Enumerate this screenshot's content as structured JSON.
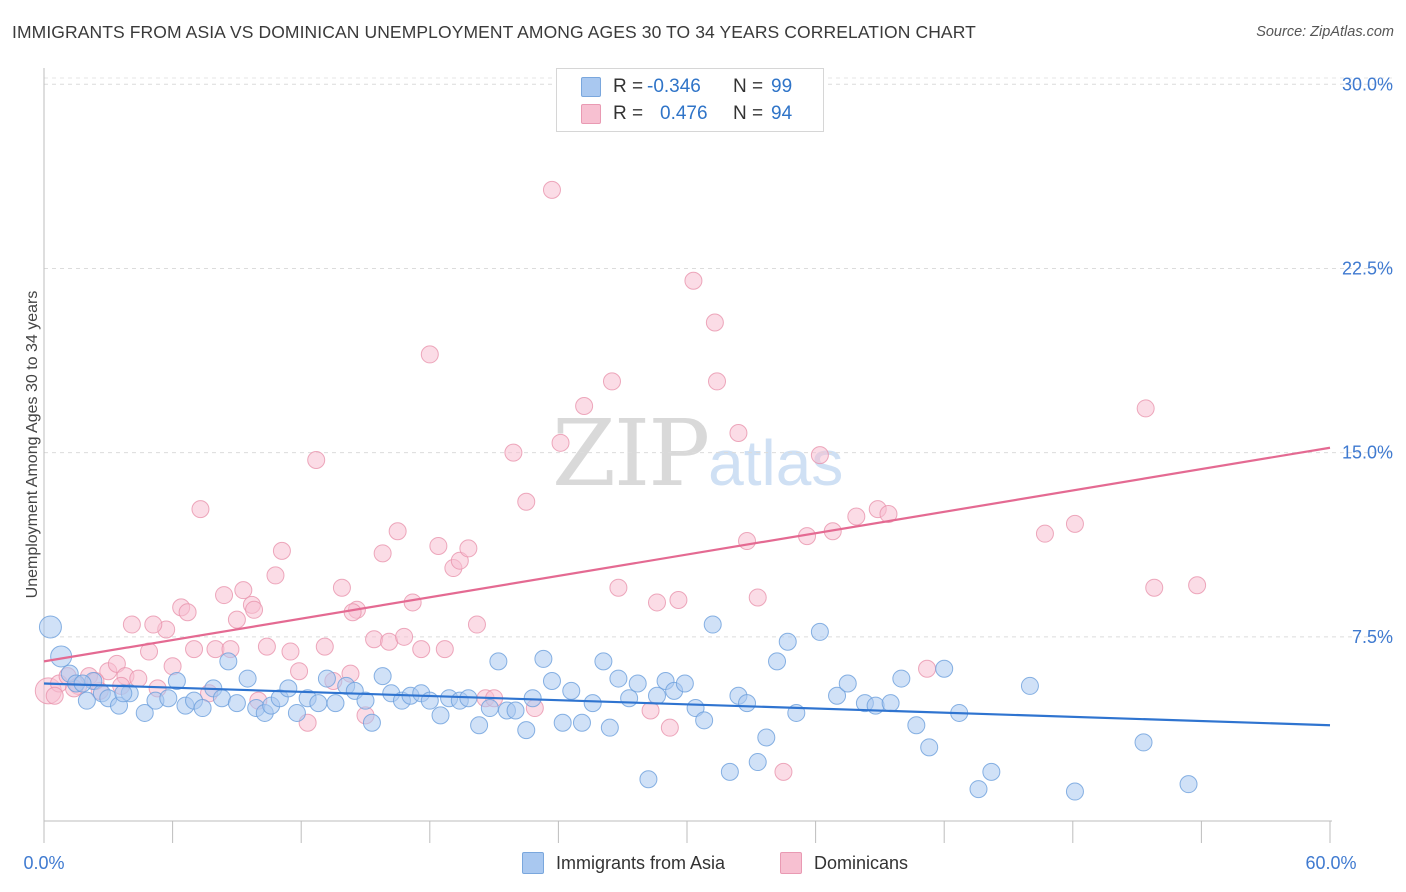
{
  "title": "IMMIGRANTS FROM ASIA VS DOMINICAN UNEMPLOYMENT AMONG AGES 30 TO 34 YEARS CORRELATION CHART",
  "source": "Source: ZipAtlas.com",
  "watermark": {
    "zip": "ZIP",
    "atlas": "atlas"
  },
  "legend": {
    "r_label": "R =",
    "n_label": "N =",
    "rows": [
      {
        "r": "-0.346",
        "n": "99",
        "color": "#a9c8f0",
        "border": "#7aa7dd"
      },
      {
        "r": "0.476",
        "n": "94",
        "color": "#f7c0d1",
        "border": "#e99ab3"
      }
    ]
  },
  "bottom_legend": [
    "Immigrants from Asia",
    "Dominicans"
  ],
  "colors": {
    "blue_fill": "#a9c8f0",
    "blue_stroke": "#6c9fdc",
    "blue_line": "#2f74d0",
    "pink_fill": "#f7c0d1",
    "pink_stroke": "#e993ad",
    "pink_line": "#e46a92",
    "axis_label": "#3f7ad0"
  },
  "chart_data": {
    "type": "scatter",
    "title": "IMMIGRANTS FROM ASIA VS DOMINICAN UNEMPLOYMENT AMONG AGES 30 TO 34 YEARS CORRELATION CHART",
    "xlabel": "",
    "ylabel": "Unemployment Among Ages 30 to 34 years",
    "xlim": [
      0,
      60
    ],
    "ylim": [
      0,
      30.5
    ],
    "x_tick_labels": [
      "0.0%",
      "60.0%"
    ],
    "y_ticks": [
      7.5,
      15.0,
      22.5,
      30.0
    ],
    "y_tick_labels": [
      "7.5%",
      "15.0%",
      "22.5%",
      "30.0%"
    ],
    "grid": "horizontal dashed",
    "series": [
      {
        "name": "Immigrants from Asia",
        "r": -0.346,
        "n": 99,
        "trend": [
          [
            0,
            5.6
          ],
          [
            60,
            3.9
          ]
        ],
        "points": [
          [
            0.3,
            7.9
          ],
          [
            0.8,
            6.7
          ],
          [
            1.2,
            6.0
          ],
          [
            1.5,
            5.6
          ],
          [
            2.0,
            4.9
          ],
          [
            2.3,
            5.7
          ],
          [
            2.7,
            5.2
          ],
          [
            3.0,
            5.0
          ],
          [
            3.5,
            4.7
          ],
          [
            4.0,
            5.2
          ],
          [
            4.7,
            4.4
          ],
          [
            5.2,
            4.9
          ],
          [
            5.8,
            5.0
          ],
          [
            6.2,
            5.7
          ],
          [
            6.6,
            4.7
          ],
          [
            7.0,
            4.9
          ],
          [
            7.4,
            4.6
          ],
          [
            7.9,
            5.4
          ],
          [
            8.3,
            5.0
          ],
          [
            8.6,
            6.5
          ],
          [
            9.0,
            4.8
          ],
          [
            9.5,
            5.8
          ],
          [
            9.9,
            4.6
          ],
          [
            10.3,
            4.4
          ],
          [
            10.6,
            4.7
          ],
          [
            11.0,
            5.0
          ],
          [
            11.4,
            5.4
          ],
          [
            11.8,
            4.4
          ],
          [
            12.3,
            5.0
          ],
          [
            12.8,
            4.8
          ],
          [
            13.2,
            5.8
          ],
          [
            13.6,
            4.8
          ],
          [
            14.1,
            5.5
          ],
          [
            14.5,
            5.3
          ],
          [
            15.0,
            4.9
          ],
          [
            15.3,
            4.0
          ],
          [
            15.8,
            5.9
          ],
          [
            16.2,
            5.2
          ],
          [
            16.7,
            4.9
          ],
          [
            17.1,
            5.1
          ],
          [
            17.6,
            5.2
          ],
          [
            18.0,
            4.9
          ],
          [
            18.5,
            4.3
          ],
          [
            18.9,
            5.0
          ],
          [
            19.4,
            4.9
          ],
          [
            19.8,
            5.0
          ],
          [
            20.3,
            3.9
          ],
          [
            20.8,
            4.6
          ],
          [
            21.2,
            6.5
          ],
          [
            21.6,
            4.5
          ],
          [
            22.0,
            4.5
          ],
          [
            22.5,
            3.7
          ],
          [
            22.8,
            5.0
          ],
          [
            23.3,
            6.6
          ],
          [
            23.7,
            5.7
          ],
          [
            24.2,
            4.0
          ],
          [
            24.6,
            5.3
          ],
          [
            25.1,
            4.0
          ],
          [
            25.6,
            4.8
          ],
          [
            26.1,
            6.5
          ],
          [
            26.4,
            3.8
          ],
          [
            26.8,
            5.8
          ],
          [
            27.3,
            5.0
          ],
          [
            27.7,
            5.6
          ],
          [
            28.2,
            1.7
          ],
          [
            28.6,
            5.1
          ],
          [
            29.0,
            5.7
          ],
          [
            29.4,
            5.3
          ],
          [
            29.9,
            5.6
          ],
          [
            30.4,
            4.6
          ],
          [
            30.8,
            4.1
          ],
          [
            31.2,
            8.0
          ],
          [
            32.0,
            2.0
          ],
          [
            32.4,
            5.1
          ],
          [
            32.8,
            4.8
          ],
          [
            33.3,
            2.4
          ],
          [
            33.7,
            3.4
          ],
          [
            34.2,
            6.5
          ],
          [
            34.7,
            7.3
          ],
          [
            35.1,
            4.4
          ],
          [
            36.2,
            7.7
          ],
          [
            37.0,
            5.1
          ],
          [
            37.5,
            5.6
          ],
          [
            38.3,
            4.8
          ],
          [
            38.8,
            4.7
          ],
          [
            39.5,
            4.8
          ],
          [
            40.0,
            5.8
          ],
          [
            40.7,
            3.9
          ],
          [
            41.3,
            3.0
          ],
          [
            42.0,
            6.2
          ],
          [
            42.7,
            4.4
          ],
          [
            43.6,
            1.3
          ],
          [
            44.2,
            2.0
          ],
          [
            46.0,
            5.5
          ],
          [
            48.1,
            1.2
          ],
          [
            51.3,
            3.2
          ],
          [
            53.4,
            1.5
          ],
          [
            1.8,
            5.6
          ],
          [
            3.7,
            5.2
          ]
        ]
      },
      {
        "name": "Dominicans",
        "r": 0.476,
        "n": 94,
        "trend": [
          [
            0,
            6.5
          ],
          [
            60,
            15.2
          ]
        ],
        "points": [
          [
            0.2,
            5.3
          ],
          [
            0.7,
            5.6
          ],
          [
            1.1,
            5.9
          ],
          [
            1.6,
            5.5
          ],
          [
            2.1,
            5.9
          ],
          [
            2.6,
            5.3
          ],
          [
            3.0,
            6.1
          ],
          [
            3.4,
            6.4
          ],
          [
            3.8,
            5.9
          ],
          [
            4.1,
            8.0
          ],
          [
            4.4,
            5.8
          ],
          [
            4.9,
            6.9
          ],
          [
            5.3,
            5.4
          ],
          [
            5.7,
            7.8
          ],
          [
            6.0,
            6.3
          ],
          [
            6.4,
            8.7
          ],
          [
            6.7,
            8.5
          ],
          [
            7.0,
            7.0
          ],
          [
            7.3,
            12.7
          ],
          [
            7.7,
            5.2
          ],
          [
            8.0,
            7.0
          ],
          [
            8.4,
            9.2
          ],
          [
            8.7,
            7.0
          ],
          [
            9.0,
            8.2
          ],
          [
            9.3,
            9.4
          ],
          [
            9.7,
            8.8
          ],
          [
            10.0,
            4.9
          ],
          [
            10.4,
            7.1
          ],
          [
            10.8,
            10.0
          ],
          [
            11.1,
            11.0
          ],
          [
            11.5,
            6.9
          ],
          [
            11.9,
            6.1
          ],
          [
            12.3,
            4.0
          ],
          [
            12.7,
            14.7
          ],
          [
            13.1,
            7.1
          ],
          [
            13.5,
            5.7
          ],
          [
            13.9,
            9.5
          ],
          [
            14.3,
            6.0
          ],
          [
            14.6,
            8.6
          ],
          [
            15.0,
            4.3
          ],
          [
            15.4,
            7.4
          ],
          [
            15.8,
            10.9
          ],
          [
            16.1,
            7.3
          ],
          [
            16.5,
            11.8
          ],
          [
            16.8,
            7.5
          ],
          [
            17.2,
            8.9
          ],
          [
            17.6,
            7.0
          ],
          [
            18.0,
            19.0
          ],
          [
            18.4,
            11.2
          ],
          [
            18.7,
            7.0
          ],
          [
            19.1,
            10.3
          ],
          [
            19.4,
            10.6
          ],
          [
            19.8,
            11.1
          ],
          [
            20.2,
            8.0
          ],
          [
            20.6,
            5.0
          ],
          [
            21.0,
            5.0
          ],
          [
            21.9,
            15.0
          ],
          [
            22.5,
            13.0
          ],
          [
            22.9,
            4.6
          ],
          [
            23.7,
            25.7
          ],
          [
            24.1,
            15.4
          ],
          [
            25.2,
            16.9
          ],
          [
            26.5,
            17.9
          ],
          [
            26.8,
            9.5
          ],
          [
            28.3,
            4.5
          ],
          [
            28.6,
            8.9
          ],
          [
            29.2,
            3.8
          ],
          [
            29.6,
            9.0
          ],
          [
            30.3,
            22.0
          ],
          [
            31.3,
            20.3
          ],
          [
            31.4,
            17.9
          ],
          [
            32.4,
            15.8
          ],
          [
            32.8,
            11.4
          ],
          [
            33.3,
            9.1
          ],
          [
            34.5,
            2.0
          ],
          [
            35.6,
            11.6
          ],
          [
            36.2,
            14.9
          ],
          [
            36.8,
            11.8
          ],
          [
            37.9,
            12.4
          ],
          [
            38.9,
            12.7
          ],
          [
            39.4,
            12.5
          ],
          [
            41.2,
            6.2
          ],
          [
            46.7,
            11.7
          ],
          [
            48.1,
            12.1
          ],
          [
            51.4,
            16.8
          ],
          [
            51.8,
            9.5
          ],
          [
            53.8,
            9.6
          ],
          [
            2.4,
            5.7
          ],
          [
            3.6,
            5.5
          ],
          [
            5.1,
            8.0
          ],
          [
            9.8,
            8.6
          ],
          [
            14.4,
            8.5
          ],
          [
            1.4,
            5.4
          ],
          [
            0.5,
            5.1
          ]
        ]
      }
    ]
  }
}
